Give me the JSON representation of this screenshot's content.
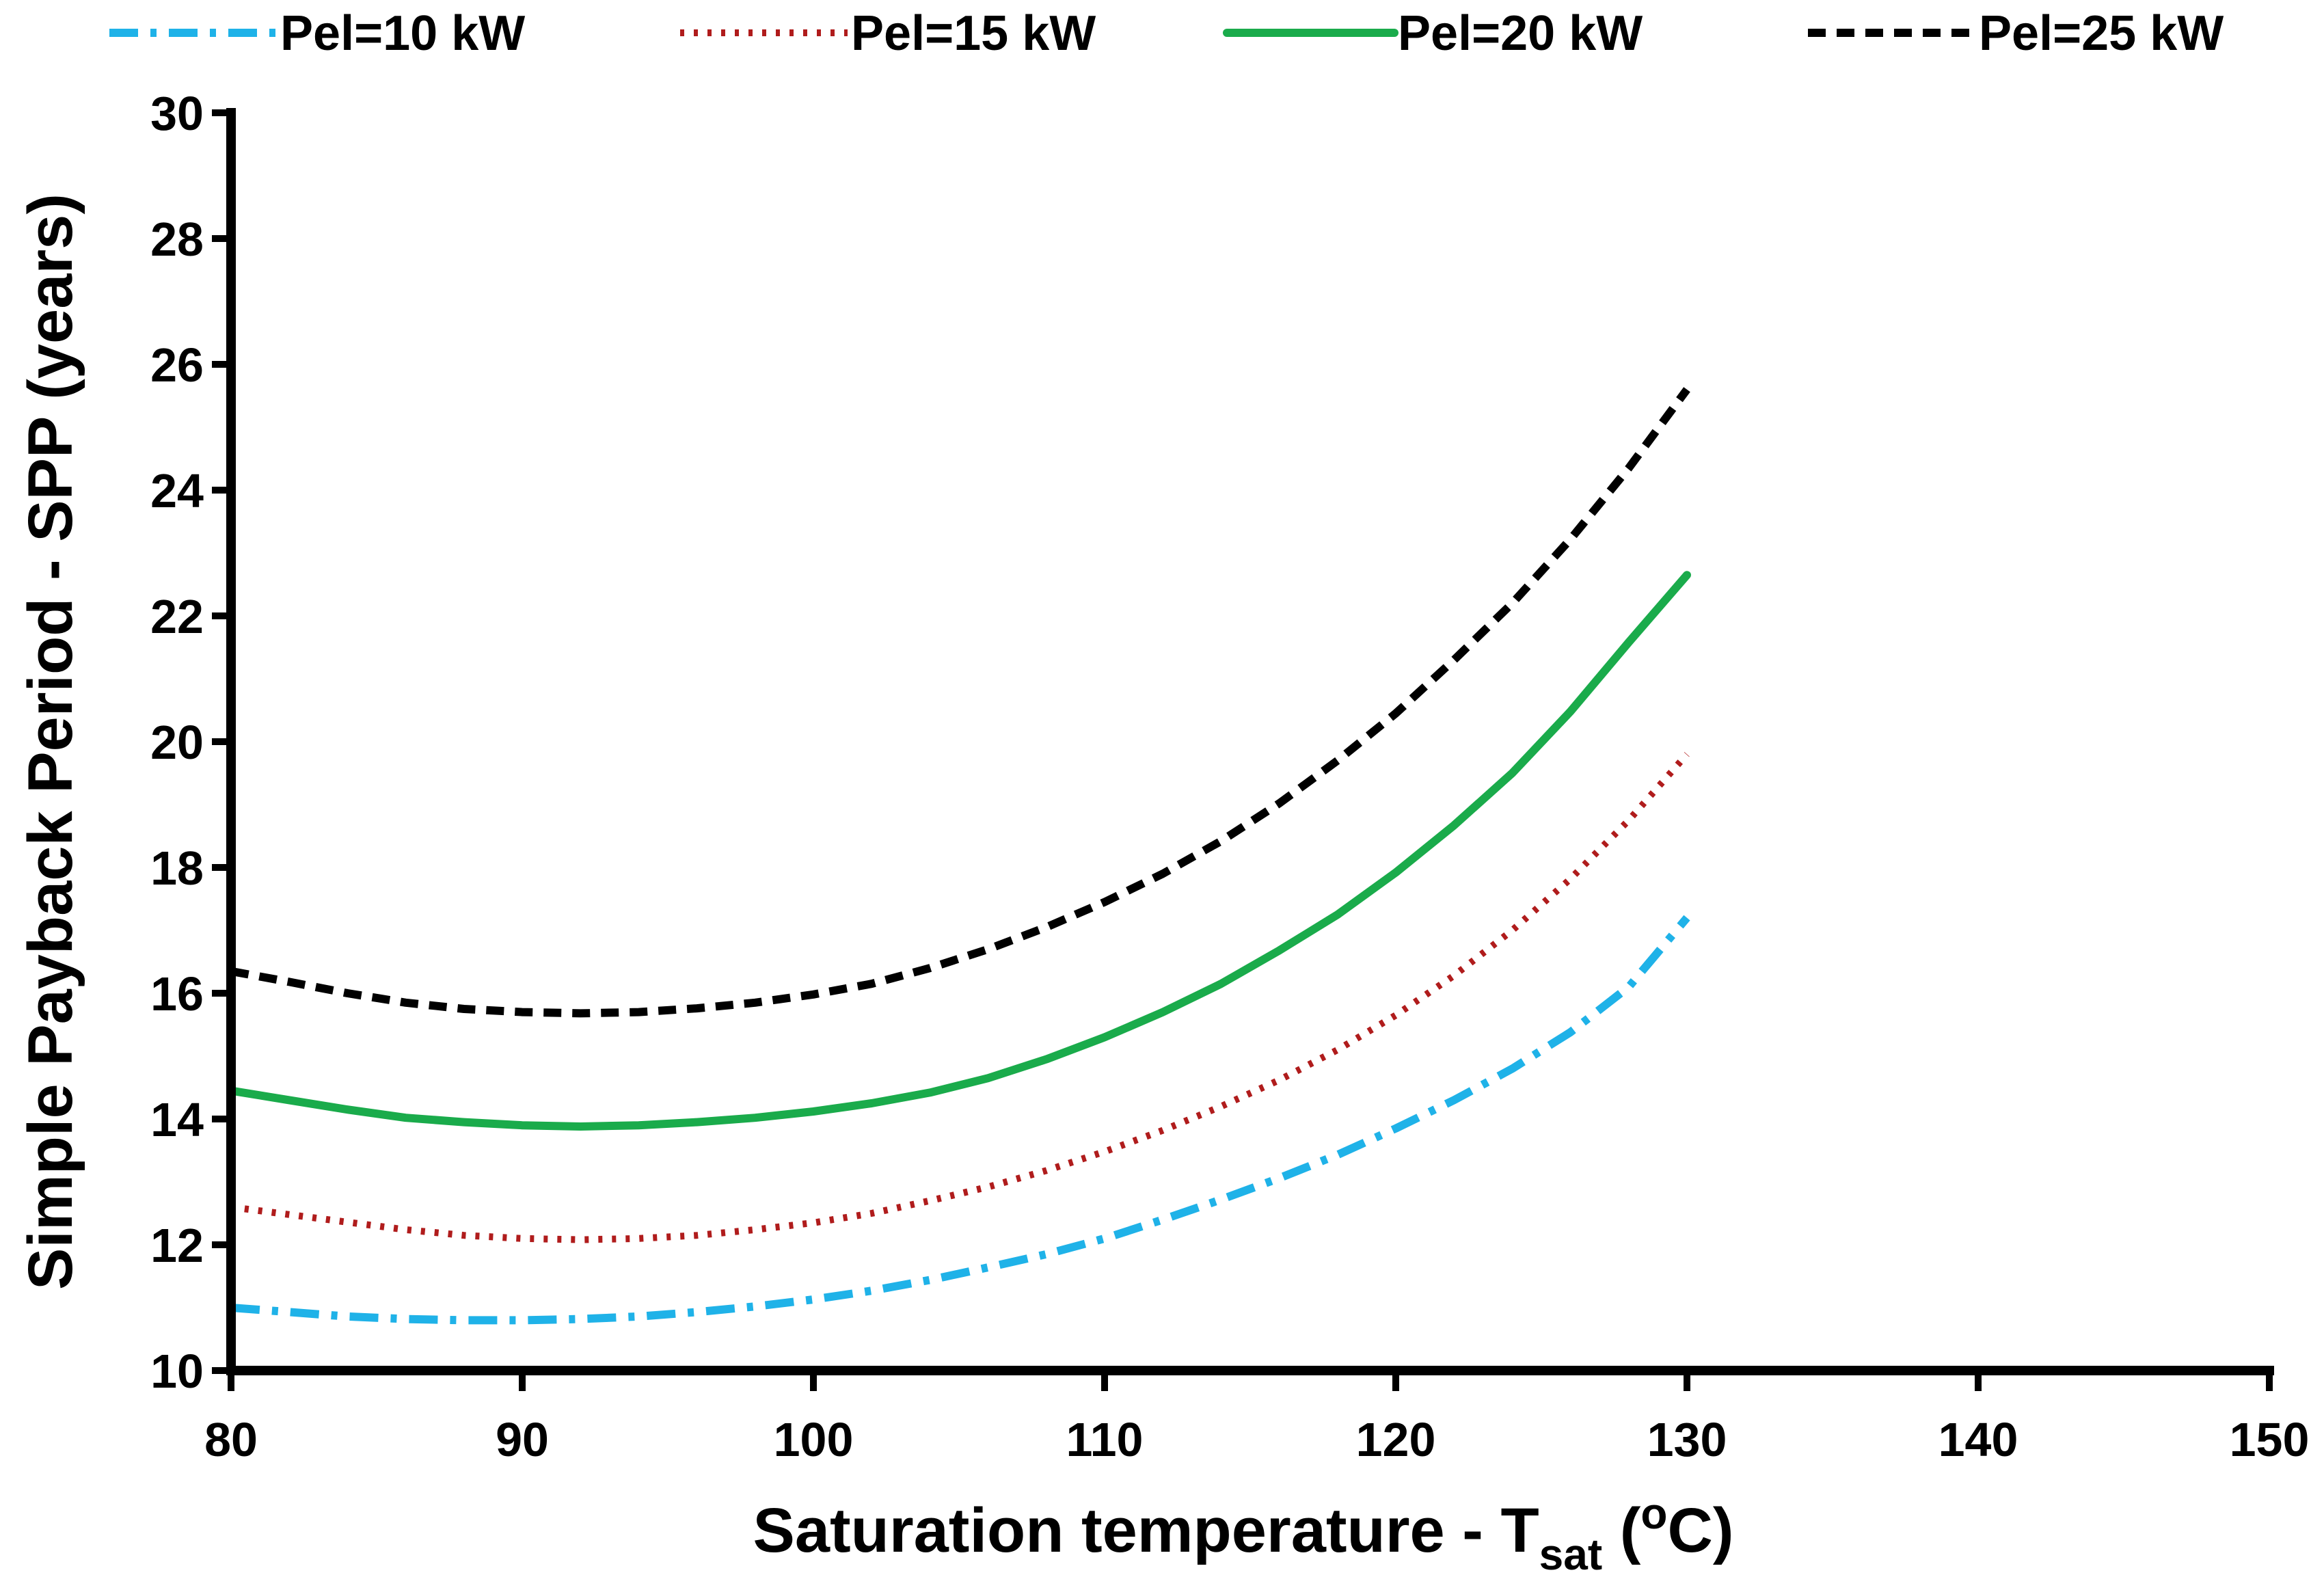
{
  "chart_data": {
    "type": "line",
    "xlabel": "Saturation temperature - T",
    "xlabel_sub": "sat",
    "xlabel_unit_open": " (",
    "xlabel_unit_sup": "o",
    "xlabel_unit_close": "C)",
    "ylabel": "Simple Payback Period - SPP (years)",
    "xlim": [
      80,
      150
    ],
    "ylim": [
      10,
      30
    ],
    "xticks": [
      "80",
      "90",
      "100",
      "110",
      "120",
      "130",
      "140",
      "150"
    ],
    "yticks": [
      "10",
      "12",
      "14",
      "16",
      "18",
      "20",
      "22",
      "24",
      "26",
      "28",
      "30"
    ],
    "legend_position": "top",
    "series": [
      {
        "name": "Pel=10 kW",
        "color": "#1fb2e8",
        "dash": "dash-dot",
        "x": [
          80,
          82,
          84,
          86,
          88,
          90,
          92,
          94,
          96,
          98,
          100,
          102,
          104,
          106,
          108,
          110,
          112,
          114,
          116,
          118,
          120,
          122,
          124,
          126,
          128,
          130
        ],
        "y": [
          11.0,
          10.93,
          10.86,
          10.82,
          10.8,
          10.8,
          10.82,
          10.86,
          10.93,
          11.02,
          11.13,
          11.27,
          11.44,
          11.64,
          11.85,
          12.1,
          12.4,
          12.72,
          13.06,
          13.43,
          13.85,
          14.3,
          14.8,
          15.38,
          16.1,
          17.2
        ]
      },
      {
        "name": "Pel=15 kW",
        "color": "#b01c1c",
        "dash": "dotted",
        "x": [
          80,
          82,
          84,
          86,
          88,
          90,
          92,
          94,
          96,
          98,
          100,
          102,
          104,
          106,
          108,
          110,
          112,
          114,
          116,
          118,
          120,
          122,
          124,
          126,
          128,
          130
        ],
        "y": [
          12.6,
          12.48,
          12.36,
          12.24,
          12.15,
          12.1,
          12.08,
          12.1,
          12.15,
          12.24,
          12.35,
          12.5,
          12.7,
          12.92,
          13.18,
          13.48,
          13.82,
          14.2,
          14.62,
          15.1,
          15.65,
          16.28,
          17.0,
          17.82,
          18.75,
          19.8
        ]
      },
      {
        "name": "Pel=20 kW",
        "color": "#1aab4b",
        "dash": "solid",
        "x": [
          80,
          82,
          84,
          86,
          88,
          90,
          92,
          94,
          96,
          98,
          100,
          102,
          104,
          106,
          108,
          110,
          112,
          114,
          116,
          118,
          120,
          122,
          124,
          126,
          128,
          130
        ],
        "y": [
          14.45,
          14.3,
          14.15,
          14.02,
          13.95,
          13.9,
          13.88,
          13.9,
          13.95,
          14.02,
          14.12,
          14.25,
          14.42,
          14.65,
          14.95,
          15.3,
          15.7,
          16.15,
          16.68,
          17.25,
          17.92,
          18.67,
          19.5,
          20.48,
          21.58,
          22.65
        ]
      },
      {
        "name": "Pel=25 kW",
        "color": "#000000",
        "dash": "dashed",
        "x": [
          80,
          82,
          84,
          86,
          88,
          90,
          92,
          94,
          96,
          98,
          100,
          102,
          104,
          106,
          108,
          110,
          112,
          114,
          116,
          118,
          120,
          122,
          124,
          126,
          128,
          130
        ],
        "y": [
          16.35,
          16.18,
          16.0,
          15.85,
          15.75,
          15.7,
          15.68,
          15.7,
          15.76,
          15.85,
          15.98,
          16.15,
          16.4,
          16.7,
          17.05,
          17.45,
          17.9,
          18.42,
          19.02,
          19.7,
          20.45,
          21.3,
          22.2,
          23.22,
          24.35,
          25.6
        ]
      }
    ]
  }
}
